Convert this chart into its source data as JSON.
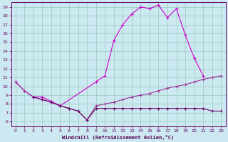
{
  "xlabel": "Windchill (Refroidissement éolien,°C)",
  "bg_color": "#cce8f0",
  "grid_color": "#99ccbb",
  "line_color1": "#cc00cc",
  "line_color2": "#993399",
  "line_color3": "#660066",
  "xlim": [
    -0.5,
    23.5
  ],
  "ylim": [
    5.5,
    19.5
  ],
  "xticks": [
    0,
    1,
    2,
    3,
    4,
    5,
    6,
    7,
    8,
    9,
    10,
    11,
    12,
    13,
    14,
    15,
    16,
    17,
    18,
    19,
    20,
    21,
    22,
    23
  ],
  "yticks": [
    6,
    7,
    8,
    9,
    10,
    11,
    12,
    13,
    14,
    15,
    16,
    17,
    18,
    19
  ],
  "line1_x": [
    0,
    1,
    2,
    3,
    4,
    5,
    9,
    10,
    11,
    12,
    13,
    14,
    15,
    16,
    17,
    18,
    19,
    20,
    21
  ],
  "line1_y": [
    10.5,
    9.5,
    8.8,
    8.8,
    8.3,
    7.8,
    10.5,
    11.2,
    15.2,
    17.0,
    18.2,
    19.0,
    18.8,
    19.2,
    17.8,
    18.8,
    15.8,
    13.2,
    11.2
  ],
  "line2_x": [
    0,
    1,
    2,
    3,
    4,
    5,
    6,
    7,
    8,
    9,
    10,
    11,
    12,
    13,
    14,
    15,
    16,
    17,
    18,
    19,
    20,
    21,
    22,
    23
  ],
  "line2_y": [
    10.5,
    9.5,
    8.8,
    8.5,
    8.2,
    7.8,
    7.5,
    7.2,
    6.2,
    7.8,
    8.0,
    8.2,
    8.5,
    8.8,
    9.0,
    9.2,
    9.5,
    9.8,
    10.0,
    10.2,
    10.5,
    10.8,
    11.0,
    11.2
  ],
  "line3_x": [
    2,
    3,
    4,
    5,
    6,
    7,
    8,
    9,
    10,
    11,
    12,
    13,
    14,
    15,
    16,
    17,
    18,
    19,
    20,
    21,
    22,
    23
  ],
  "line3_y": [
    8.8,
    8.5,
    8.2,
    7.8,
    7.5,
    7.2,
    6.2,
    7.5,
    7.5,
    7.5,
    7.5,
    7.5,
    7.5,
    7.5,
    7.5,
    7.5,
    7.5,
    7.5,
    7.5,
    7.5,
    7.2,
    7.2
  ]
}
